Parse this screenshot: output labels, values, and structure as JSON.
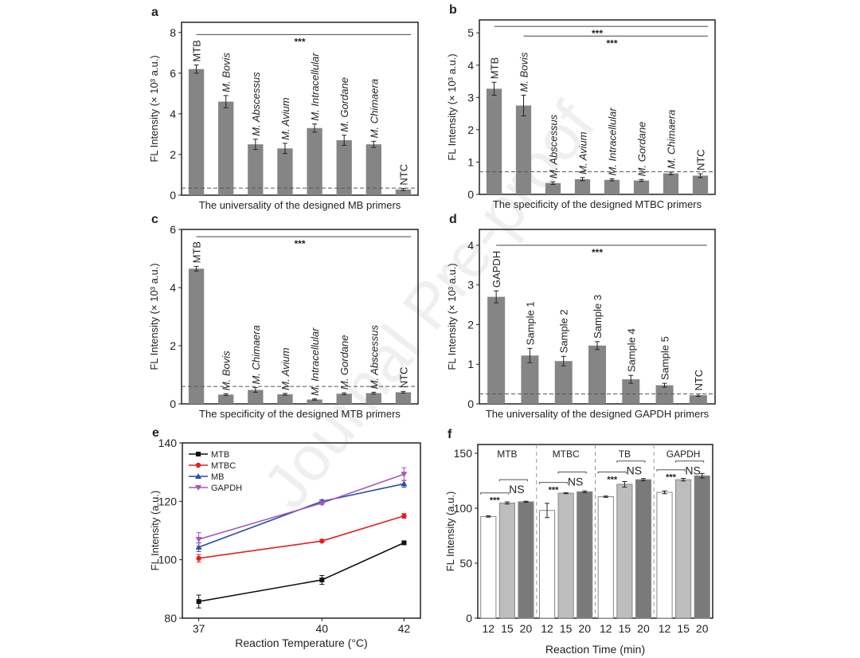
{
  "watermark": "Journal Pre-proof",
  "chart_data": [
    {
      "panel": "a",
      "type": "bar",
      "xlabel": "The universality of the designed MB primers",
      "ylabel": "FL Intensity (× 10³ a.u.)",
      "ylim": [
        0,
        8.5
      ],
      "yticks": [
        0,
        2,
        4,
        6,
        8
      ],
      "categories": [
        "MTB",
        "M. Bovis",
        "M. Abscessus",
        "M. Avium",
        "M. Intracellular",
        "M. Gordane",
        "M. Chimaera",
        "NTC"
      ],
      "values": [
        6.2,
        4.6,
        2.5,
        2.3,
        3.3,
        2.7,
        2.5,
        0.28
      ],
      "errors": [
        0.2,
        0.3,
        0.25,
        0.25,
        0.2,
        0.25,
        0.15,
        0.05
      ],
      "threshold": 0.35,
      "significance": [
        {
          "from": 0,
          "to": 7,
          "y": 7.9,
          "label": "***"
        }
      ],
      "bar_color": "#858585"
    },
    {
      "panel": "b",
      "type": "bar",
      "xlabel": "The specificity of the designed MTBC primers",
      "ylabel": "FL Intensity (× 10³ a.u.)",
      "ylim": [
        0,
        5.4
      ],
      "yticks": [
        0,
        1,
        2,
        3,
        4,
        5
      ],
      "categories": [
        "MTB",
        "M. Bovis",
        "M. Abscessus",
        "M. Avium",
        "M. Intracellular",
        "M. Gordane",
        "M. Chimaera",
        "NTC"
      ],
      "values": [
        3.27,
        2.75,
        0.35,
        0.47,
        0.45,
        0.43,
        0.65,
        0.58
      ],
      "errors": [
        0.2,
        0.32,
        0.04,
        0.05,
        0.03,
        0.03,
        0.04,
        0.06
      ],
      "threshold": 0.7,
      "significance": [
        {
          "from": 0,
          "to": 7,
          "y": 5.2,
          "label": "***"
        },
        {
          "from": 1,
          "to": 7,
          "y": 4.9,
          "label": "***"
        }
      ],
      "bar_color": "#858585"
    },
    {
      "panel": "c",
      "type": "bar",
      "xlabel": "The specificity of the designed MTB primers",
      "ylabel": "FL Intensity (× 10³ a.u.)",
      "ylim": [
        0,
        6
      ],
      "yticks": [
        0,
        2,
        4,
        6
      ],
      "categories": [
        "MTB",
        "M. Bovis",
        "M. Chimaera",
        "M. Avium",
        "M. Intracellular",
        "M. Gordane",
        "M. Abscessus",
        "NTC"
      ],
      "values": [
        4.65,
        0.32,
        0.48,
        0.33,
        0.15,
        0.35,
        0.37,
        0.4
      ],
      "errors": [
        0.08,
        0.03,
        0.08,
        0.03,
        0.02,
        0.03,
        0.03,
        0.03
      ],
      "threshold": 0.6,
      "significance": [
        {
          "from": 0,
          "to": 7,
          "y": 5.75,
          "label": "***"
        }
      ],
      "bar_color": "#858585"
    },
    {
      "panel": "d",
      "type": "bar",
      "xlabel": "The universality of the designed GAPDH primers",
      "ylabel": "FL Intensity (× 10³ a.u.)",
      "ylim": [
        0,
        4.4
      ],
      "yticks": [
        0,
        1,
        2,
        3,
        4
      ],
      "categories": [
        "GAPDH",
        "Sample 1",
        "Sample 2",
        "Sample 3",
        "Sample 4",
        "Sample 5",
        "NTC"
      ],
      "values": [
        2.7,
        1.22,
        1.08,
        1.47,
        0.62,
        0.47,
        0.22
      ],
      "errors": [
        0.15,
        0.18,
        0.12,
        0.1,
        0.1,
        0.05,
        0.03
      ],
      "threshold": 0.25,
      "significance": [
        {
          "from": 0,
          "to": 6,
          "y": 4.0,
          "label": "***"
        }
      ],
      "bar_color": "#858585"
    },
    {
      "panel": "e",
      "type": "line",
      "xlabel": "Reaction Temperature (°C)",
      "ylabel": "FL Intensity (a.u.)",
      "ylim": [
        80,
        140
      ],
      "yticks": [
        80,
        100,
        120,
        140
      ],
      "xlim": [
        36.6,
        42.4
      ],
      "x": [
        37,
        40,
        42
      ],
      "legend": "top-left",
      "series": [
        {
          "name": "MTB",
          "color": "#111111",
          "marker": "square",
          "values": [
            85.7,
            93.1,
            105.8
          ],
          "errors": [
            2.2,
            1.5,
            0.4
          ]
        },
        {
          "name": "MTBC",
          "color": "#e02020",
          "marker": "circle",
          "values": [
            100.5,
            106.4,
            115
          ],
          "errors": [
            1.3,
            0.4,
            0.8
          ]
        },
        {
          "name": "MB",
          "color": "#2a4fa8",
          "marker": "triangle-up",
          "values": [
            104.3,
            120,
            126
          ],
          "errors": [
            1.5,
            0.5,
            1.2
          ]
        },
        {
          "name": "GAPDH",
          "color": "#a855b5",
          "marker": "triangle-down",
          "values": [
            107,
            119.4,
            129.3
          ],
          "errors": [
            2.3,
            0.6,
            2.2
          ]
        }
      ]
    },
    {
      "panel": "f",
      "type": "bar",
      "xlabel": "Reaction Time (min)",
      "ylabel": "FL Intensity (a.u.)",
      "ylim": [
        0,
        158
      ],
      "yticks": [
        0,
        50,
        100,
        150
      ],
      "bar_labels": [
        "12",
        "15",
        "20"
      ],
      "bar_colors": [
        "#ffffff",
        "#bdbdbd",
        "#7a7a7a"
      ],
      "groups": [
        {
          "name": "MTB",
          "values": [
            92.5,
            104.8,
            105.9
          ],
          "errors": [
            0.6,
            1.0,
            0.5
          ],
          "sig": [
            {
              "label": "***",
              "y": 114
            },
            {
              "label": "NS",
              "y": 126
            }
          ]
        },
        {
          "name": "MTBC",
          "values": [
            98,
            113.7,
            115
          ],
          "errors": [
            6.5,
            0.4,
            0.8
          ],
          "sig": [
            {
              "label": "***",
              "y": 123.5
            },
            {
              "label": "NS",
              "y": 133
            }
          ]
        },
        {
          "name": "TB",
          "values": [
            110.5,
            121.8,
            126
          ],
          "errors": [
            0.6,
            2.5,
            1.0
          ],
          "sig": [
            {
              "label": "***",
              "y": 133
            },
            {
              "label": "NS",
              "y": 143
            }
          ]
        },
        {
          "name": "GAPDH",
          "values": [
            114.5,
            126,
            129.5
          ],
          "errors": [
            1.3,
            1.2,
            2.0
          ],
          "sig": [
            {
              "label": "***",
              "y": 135
            },
            {
              "label": "NS",
              "y": 143
            }
          ]
        }
      ]
    }
  ]
}
